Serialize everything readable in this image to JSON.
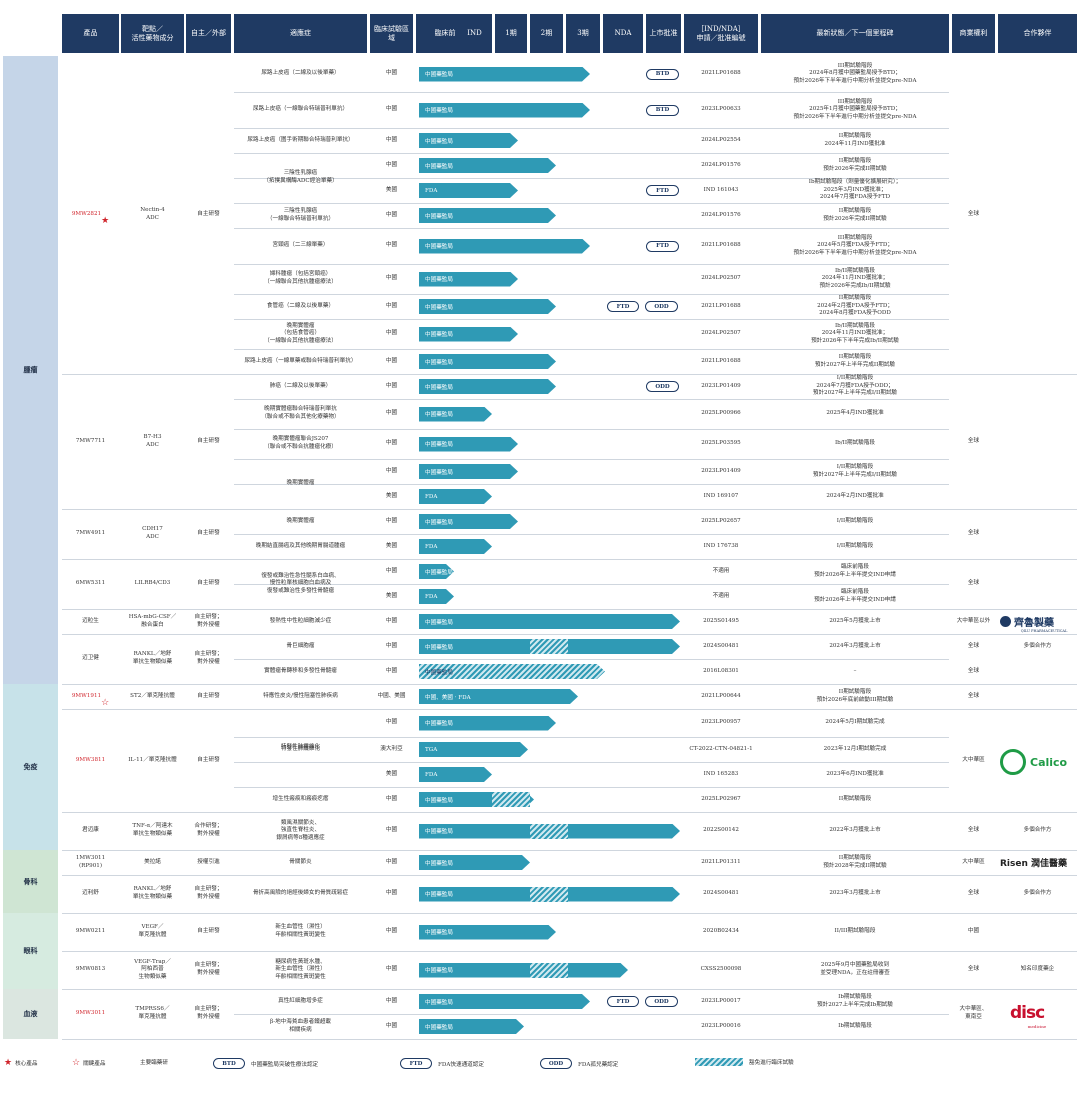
{
  "headers": [
    "產品",
    "靶點／\n活性藥物成分",
    "自主／外部",
    "適應症",
    "臨床試驗區域",
    "臨床前",
    "IND",
    "1期",
    "2期",
    "3期",
    "NDA",
    "上市批准",
    "［IND/NDA］\n申請／批准編號",
    "最新狀態／下一個里程碑",
    "商業權利",
    "合作夥伴"
  ],
  "areas": [
    "腫瘤",
    "免疫",
    "骨科",
    "眼科",
    "血液"
  ],
  "bar_labels": {
    "china": "中國藥監局",
    "fda": "FDA",
    "tga": "TGA",
    "china_fda": "中國、美國 · FDA"
  },
  "products": {
    "p1": {
      "name": "9MW2821",
      "target": "Nectin-4\nADC",
      "source": "自主研發"
    },
    "p2": {
      "name": "7MW7711",
      "target": "B7-H3\nADC",
      "source": "自主研發"
    },
    "p3": {
      "name": "7MW4911",
      "target": "CDH17\nADC",
      "source": "自主研發"
    },
    "p4": {
      "name": "6MW5311",
      "target": "LILRB4/CD3",
      "source": "自主研發"
    },
    "p5": {
      "name": "迈粒生",
      "target": "HSA-mbG-CSF／\n融合蛋白",
      "source": "自主研發；\n對外授權"
    },
    "p6": {
      "name": "迈卫健",
      "target": "RANKL／地舒\n單抗生物類似藥",
      "source": "自主研發；\n對外授權"
    },
    "p7": {
      "name": "9MW1911",
      "target": "ST2／單克隆抗體",
      "source": "自主研發"
    },
    "p8": {
      "name": "9MW3811",
      "target": "IL-11／單克隆抗體",
      "source": "自主研發"
    },
    "p9": {
      "name": "君迈康",
      "target": "TNF-α／阿達木\n單抗生物類似藥",
      "source": "合作研發；\n對外授權"
    },
    "p10": {
      "name": "1MW3011\n(RP901)",
      "target": "美拉諾",
      "source": "授權引進"
    },
    "p11": {
      "name": "迈利舒",
      "target": "RANKL／地舒\n單抗生物類似藥",
      "source": "自主研發；\n對外授權"
    },
    "p12": {
      "name": "9MW0211",
      "target": "VEGF／\n單克隆抗體",
      "source": "自主研發"
    },
    "p13": {
      "name": "9MW0813",
      "target": "VEGF-Trap／\n阿柏西普\n生物類似藥",
      "source": "自主研發；\n對外授權"
    },
    "p14": {
      "name": "9MW3011",
      "target": "TMPRSS6／\n單克隆抗體",
      "source": "自主研發；\n對外授權"
    }
  },
  "rows": [
    {
      "ind": "尿路上皮癌（二線及以後單藥）",
      "reg": "中國",
      "acc": "BTD",
      "app": "2021LP01688",
      "status": "III期試驗階段\n2024年8月獲中國藥監局授予BTD；\n預計2026年下半年進行中期分析並提交pre-NDA"
    },
    {
      "ind": "尿路上皮癌（一線聯合特瑞普利單抗）",
      "reg": "中國",
      "acc": "BTD",
      "app": "2023LP00633",
      "status": "III期試驗階段\n2025年1月獲中國藥監局授予BTD；\n預計2026年下半年進行中期分析並提交pre-NDA"
    },
    {
      "ind": "尿路上皮癌（圍手術期聯合特瑞普利單抗）",
      "reg": "中國",
      "app": "2024LP02554",
      "status": "II期試驗階段\n2024年11月IND獲批准"
    },
    {
      "ind": "",
      "reg": "中國",
      "app": "2024LP01576",
      "status": "II期試驗階段\n預計2026年完成II期試驗"
    },
    {
      "ind": "",
      "reg": "美國",
      "acc": "FTD",
      "app": "IND 161043",
      "status": "Ib期試驗階段（劑量優化擴展研究）；\n2025年3月IND獲批准；\n2024年7月獲FDA授予FTD"
    },
    {
      "ind": "三陰性乳腺癌\n（一線聯合特瑞普利單抗）",
      "reg": "中國",
      "app": "2024LP01576",
      "status": "II期試驗階段\n預計2026年完成II期試驗"
    },
    {
      "ind": "宮頸癌（二三線單藥）",
      "reg": "中國",
      "acc": "FTD",
      "app": "2021LP01688",
      "status": "III期試驗階段\n2024年5月獲FDA授予FTD；\n預計2026年下半年進行中期分析並提交pre-NDA"
    },
    {
      "ind": "婦科腫瘤（包括宮頸癌）\n（一線聯合其他抗腫瘤療法）",
      "reg": "中國",
      "app": "2024LP02507",
      "status": "Ib/II期試驗階段\n2024年11月IND獲批准；\n預計2026年完成Ib/II期試驗"
    },
    {
      "ind": "食管癌（二線及以後單藥）",
      "reg": "中國",
      "acc": "FTD",
      "acc2": "ODD",
      "app": "2021LP01688",
      "status": "II期試驗階段\n2024年2月獲FDA授予FTD；\n2024年8月獲FDA授予ODD"
    },
    {
      "ind": "晚期實體瘤\n（包括食管癌）\n（一線聯合其他抗腫瘤療法）",
      "reg": "中國",
      "app": "2024LP02507",
      "status": "Ib/II期試驗階段\n2024年11月IND獲批准；\n預計2026年下半年完成Ib/II期試驗"
    },
    {
      "ind": "尿路上皮癌（一線單藥或聯合特瑞普利單抗）",
      "reg": "中國",
      "app": "2021LP01688",
      "status": "II期試驗階段\n預計2027年上半年完成II期試驗"
    },
    {
      "ind": "肺癌（二線及以後單藥）",
      "reg": "中國",
      "acc": "ODD",
      "app": "2023LP01409",
      "status": "I/II期試驗階段\n2024年7月獲FDA授予ODD；\n預計2027年上半年完成I/II期試驗"
    },
    {
      "ind": "晚期實體瘤聯合特瑞普利單抗\n（聯合或不聯合其他化療藥物）",
      "reg": "中國",
      "app": "2025LP00966",
      "status": "2025年4月IND獲批准"
    },
    {
      "ind": "晚期實體瘤聯合JS207\n（聯合或不聯合抗腫瘤化療）",
      "reg": "中國",
      "app": "2025LP03595",
      "status": "Ib/II期試驗階段"
    },
    {
      "ind": "晚期實體瘤",
      "reg": "中國",
      "app": "2023LP01409",
      "status": "I/II期試驗階段\n預計2027年上半年完成I/II期試驗"
    },
    {
      "ind": "",
      "reg": "美國",
      "app": "IND 169107",
      "status": "2024年2月IND獲批准"
    },
    {
      "ind": "晚期實體瘤",
      "reg": "中國",
      "app": "2025LP02657",
      "status": "I/II期試驗階段"
    },
    {
      "ind": "晚期結直腸癌及其他晚期胃腸道腫瘤",
      "reg": "美國",
      "app": "IND 176738",
      "status": "I/II期試驗階段"
    },
    {
      "ind": "復發或難治性急性髓系白血病、\n慢性粒單核細胞白血病及\n復發或難治性多發性骨髓瘤",
      "reg": "中國",
      "app": "不適用",
      "status": "臨床前階段\n預計2026年上半年提交IND申請"
    },
    {
      "ind": "",
      "reg": "美國",
      "app": "不適用",
      "status": "臨床前階段\n預計2026年上半年提交IND申請"
    },
    {
      "ind": "發熱性中性粒細胞減少症",
      "reg": "中國",
      "app": "2025S01495",
      "status": "2025年5月獲批上市"
    },
    {
      "ind": "骨巨細胞瘤",
      "reg": "中國",
      "app": "2024S00481",
      "status": "2024年3月獲批上市"
    },
    {
      "ind": "實體瘤骨轉移和多發性骨髓瘤",
      "reg": "中國",
      "app": "2016L08301",
      "status": "–"
    },
    {
      "ind": "特應性皮炎/慢性阻塞性肺疾病",
      "reg": "",
      "app": "2021LP00644",
      "status": "II期試驗階段\n預計2026年底前啟動III期試驗"
    },
    {
      "ind": "",
      "reg": "中國",
      "app": "2023LP00957",
      "status": "2024年5月I期試驗完成"
    },
    {
      "ind": "特發性肺纖維化",
      "reg": "澳大利亞",
      "app": "CT-2022-CTN-04821-1",
      "status": "2023年12月I期試驗完成"
    },
    {
      "ind": "",
      "reg": "美國",
      "app": "IND 165283",
      "status": "2023年6月IND獲批准"
    },
    {
      "ind": "增生性瘢痕和瘢痕疙瘩",
      "reg": "中國",
      "app": "2025LP02967",
      "status": "II期試驗階段"
    },
    {
      "ind": "類風濕關節炎、\n強直性脊柱炎、\n銀屑病等8種適應症",
      "reg": "中國",
      "app": "2022S00142",
      "status": "2022年3月獲批上市"
    },
    {
      "ind": "骨關節炎",
      "reg": "中國",
      "app": "2021LP01311",
      "status": "II期試驗階段\n預計2028年完成II期試驗"
    },
    {
      "ind": "骨折高風險的絕經後婦女的骨質疏鬆症",
      "reg": "中國",
      "app": "2024S00481",
      "status": "2023年3月獲批上市"
    },
    {
      "ind": "新生血管性（濕性）\n年齡相關性黃斑變性",
      "reg": "中國",
      "app": "2020B02434",
      "status": "II/III期試驗階段"
    },
    {
      "ind": "糖尿病性黃斑水腫、\n新生血管性（濕性）\n年齡相關性黃斑變性",
      "reg": "中國",
      "app": "CXSS2500098",
      "status": "2025年9月中國藥監局收到\n並受理NDA，正在註冊審查"
    },
    {
      "ind": "真性紅細胞增多症",
      "reg": "中國",
      "acc": "FTD",
      "acc2": "ODD",
      "app": "2023LP00017",
      "status": "Ib期試驗階段\n預計2027上半年完成Ib期試驗"
    },
    {
      "ind": "β-地中海貧血患者鐵超載\n相關疾病",
      "reg": "中國",
      "app": "2023LP00016",
      "status": "Ib期試驗階段"
    }
  ],
  "rights": [
    "全球",
    "全球",
    "全球",
    "全球",
    "大中華區以外",
    "全球",
    "多個合作方",
    "全球",
    "全球",
    "大中華區",
    "全球",
    "多個合作方",
    "大中華區",
    "全球",
    "多個合作方",
    "中國",
    "全球",
    "知名印度藥企",
    "大中華區、\n東南亞"
  ],
  "partners": {
    "qilu": "齊魯製藥",
    "qilu_en": "QILU PHARMACEUTICAL",
    "calico": "Calico",
    "risen": "Risen 潤佳醫藥",
    "disc": "disc",
    "disc_sub": "medicine"
  },
  "legend": {
    "core": "核心產品",
    "key": "關鍵產品",
    "ongoing": "主要臨藥研",
    "btd": "BTD",
    "btd_desc": "中國藥監局突破性療法認定",
    "ftd": "FTD",
    "ftd_desc": "FDA快速通道認定",
    "odd": "ODD",
    "odd_desc": "FDA孤兒藥認定",
    "hatch_desc": "豁免進行臨床試驗"
  }
}
